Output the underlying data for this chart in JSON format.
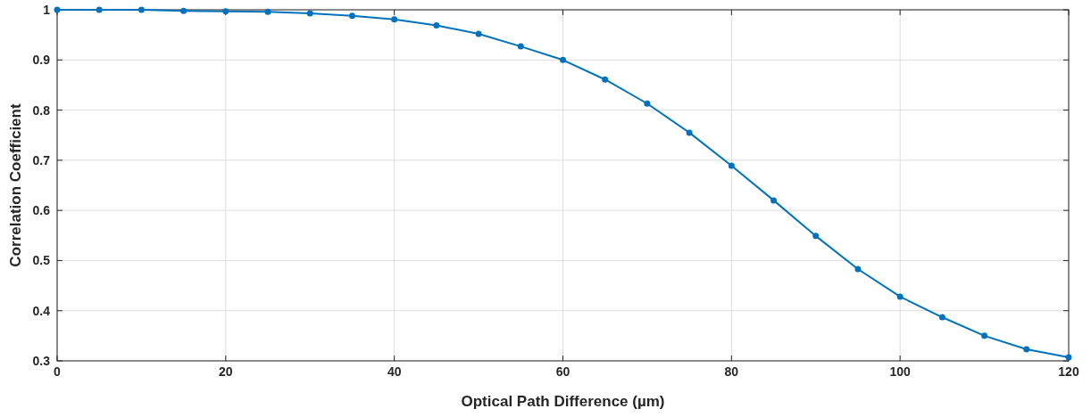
{
  "chart_data": {
    "type": "line",
    "xlabel": "Optical Path Difference (µm)",
    "ylabel": "Correlation Coefficient",
    "x": [
      0,
      5,
      10,
      15,
      20,
      25,
      30,
      35,
      40,
      45,
      50,
      55,
      60,
      65,
      70,
      75,
      80,
      85,
      90,
      95,
      100,
      105,
      110,
      115,
      120
    ],
    "series": [
      {
        "color": "#0072bd",
        "values": [
          1.0,
          1.0,
          1.0,
          0.998,
          0.997,
          0.996,
          0.993,
          0.988,
          0.981,
          0.969,
          0.952,
          0.927,
          0.9,
          0.861,
          0.813,
          0.755,
          0.689,
          0.62,
          0.549,
          0.483,
          0.428,
          0.387,
          0.35,
          0.323,
          0.307
        ]
      }
    ],
    "xlim": [
      0,
      120
    ],
    "xticks": [
      0,
      20,
      40,
      60,
      80,
      100,
      120
    ],
    "ylim": [
      0.3,
      1
    ],
    "yticks": [
      0.3,
      0.4,
      0.5,
      0.6,
      0.7,
      0.8,
      0.9,
      1
    ],
    "grid": true,
    "marker": "circle",
    "line_style": "solid"
  }
}
